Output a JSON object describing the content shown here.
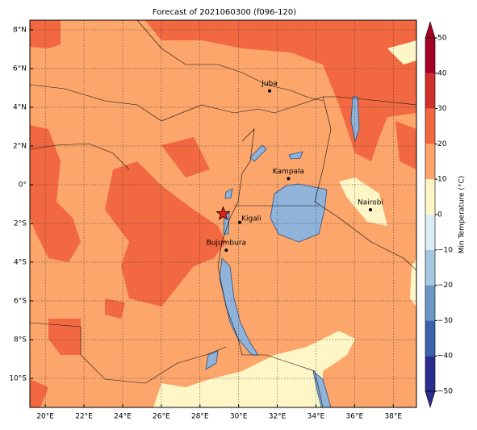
{
  "chart_data": {
    "type": "map",
    "title": "Forecast of 2021060300 (f096-120)",
    "xlim": [
      19.2,
      39.2
    ],
    "ylim": [
      -11.5,
      8.5
    ],
    "xticks": [
      {
        "value": 20,
        "label": "20°E"
      },
      {
        "value": 22,
        "label": "22°E"
      },
      {
        "value": 24,
        "label": "24°E"
      },
      {
        "value": 26,
        "label": "26°E"
      },
      {
        "value": 28,
        "label": "28°E"
      },
      {
        "value": 30,
        "label": "30°E"
      },
      {
        "value": 32,
        "label": "32°E"
      },
      {
        "value": 34,
        "label": "34°E"
      },
      {
        "value": 36,
        "label": "36°E"
      },
      {
        "value": 38,
        "label": "38°E"
      }
    ],
    "yticks": [
      {
        "value": 8,
        "label": "8°N"
      },
      {
        "value": 6,
        "label": "6°N"
      },
      {
        "value": 4,
        "label": "4°N"
      },
      {
        "value": 2,
        "label": "2°N"
      },
      {
        "value": 0,
        "label": "0°"
      },
      {
        "value": -2,
        "label": "2°S"
      },
      {
        "value": -4,
        "label": "4°S"
      },
      {
        "value": -6,
        "label": "6°S"
      },
      {
        "value": -8,
        "label": "8°S"
      },
      {
        "value": -10,
        "label": "10°S"
      }
    ],
    "grid": true,
    "cities": [
      {
        "name": "Juba",
        "lon": 31.6,
        "lat": 4.85
      },
      {
        "name": "Kampala",
        "lon": 32.58,
        "lat": 0.32
      },
      {
        "name": "Nairobi",
        "lon": 36.82,
        "lat": -1.29
      },
      {
        "name": "Kigali",
        "lon": 30.06,
        "lat": -1.95
      },
      {
        "name": "Bujumbura",
        "lon": 29.36,
        "lat": -3.38
      }
    ],
    "marker": {
      "lon": 29.2,
      "lat": -1.5,
      "color": "#e8201a"
    },
    "colorbar": {
      "label": "Min Temperature (°C)",
      "ticks": [
        {
          "value": -50,
          "label": "−50"
        },
        {
          "value": -40,
          "label": "−40"
        },
        {
          "value": -30,
          "label": "−30"
        },
        {
          "value": -20,
          "label": "−20"
        },
        {
          "value": -10,
          "label": "−10"
        },
        0,
        10,
        20,
        30,
        40,
        50
      ],
      "colors": [
        "#2b2c8f",
        "#3a62a8",
        "#6a97c6",
        "#a4c8e0",
        "#dcecf3",
        "#fef6c6",
        "#fca66b",
        "#f26841",
        "#d0302a",
        "#a50026"
      ]
    }
  }
}
